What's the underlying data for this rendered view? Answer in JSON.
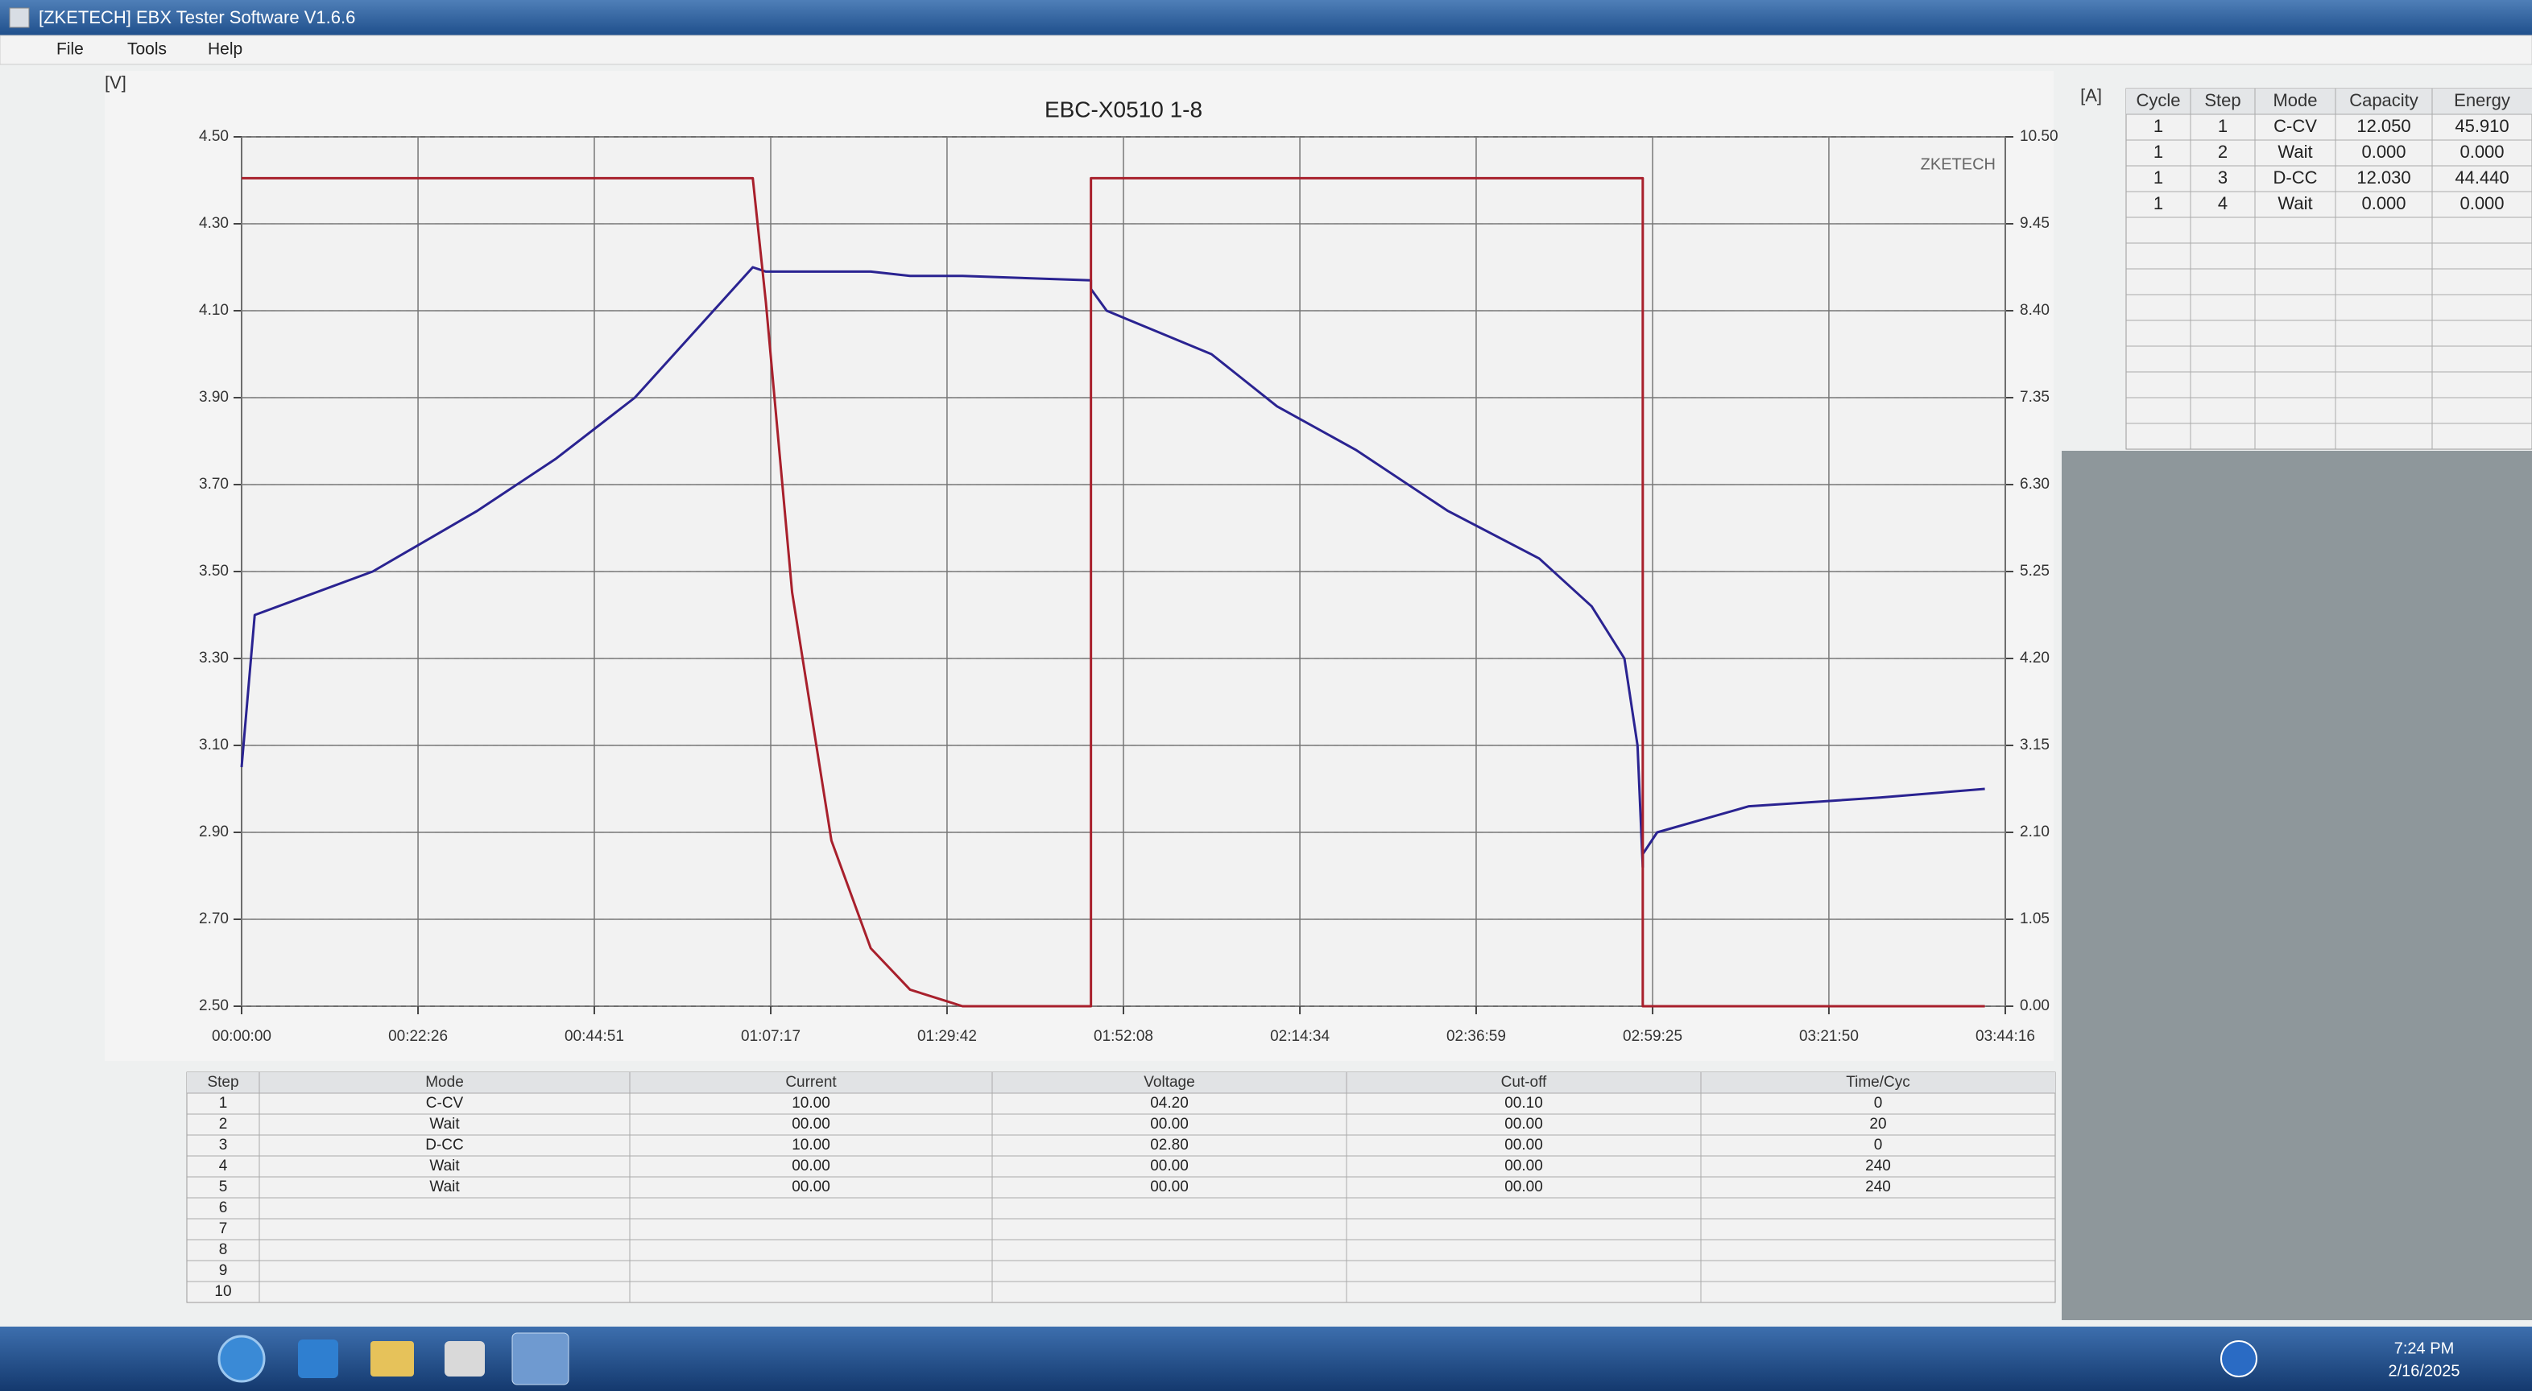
{
  "window": {
    "title": "[ZKETECH] EBX Tester Software V1.6.6",
    "menu": [
      "File",
      "Tools",
      "Help"
    ]
  },
  "chart_data": {
    "type": "line",
    "title": "EBC-X0510 1-8",
    "y_label": "[V]",
    "y2_label": "[A]",
    "watermark": "ZKETECH",
    "xlim": [
      0,
      13456
    ],
    "xticks": [
      {
        "value": 0,
        "label": "00:00:00"
      },
      {
        "value": 1346,
        "label": "00:22:26"
      },
      {
        "value": 2691,
        "label": "00:44:51"
      },
      {
        "value": 4037,
        "label": "01:07:17"
      },
      {
        "value": 5382,
        "label": "01:29:42"
      },
      {
        "value": 6728,
        "label": "01:52:08"
      },
      {
        "value": 8074,
        "label": "02:14:34"
      },
      {
        "value": 9419,
        "label": "02:36:59"
      },
      {
        "value": 10765,
        "label": "02:59:25"
      },
      {
        "value": 12110,
        "label": "03:21:50"
      },
      {
        "value": 13456,
        "label": "03:44:16"
      }
    ],
    "ylim": [
      2.5,
      4.5
    ],
    "yticks": [
      {
        "value": 2.5,
        "label": "2.50"
      },
      {
        "value": 2.7,
        "label": "2.70"
      },
      {
        "value": 2.9,
        "label": "2.90"
      },
      {
        "value": 3.1,
        "label": "3.10"
      },
      {
        "value": 3.3,
        "label": "3.30"
      },
      {
        "value": 3.5,
        "label": "3.50"
      },
      {
        "value": 3.7,
        "label": "3.70"
      },
      {
        "value": 3.9,
        "label": "3.90"
      },
      {
        "value": 4.1,
        "label": "4.10"
      },
      {
        "value": 4.3,
        "label": "4.30"
      },
      {
        "value": 4.5,
        "label": "4.50"
      }
    ],
    "y2lim": [
      0,
      10.5
    ],
    "y2ticks": [
      {
        "value": 0,
        "label": "0.00"
      },
      {
        "value": 1.05,
        "label": "1.05"
      },
      {
        "value": 2.1,
        "label": "2.10"
      },
      {
        "value": 3.15,
        "label": "3.15"
      },
      {
        "value": 4.2,
        "label": "4.20"
      },
      {
        "value": 5.25,
        "label": "5.25"
      },
      {
        "value": 6.3,
        "label": "6.30"
      },
      {
        "value": 7.35,
        "label": "7.35"
      },
      {
        "value": 8.4,
        "label": "8.40"
      },
      {
        "value": 9.45,
        "label": "9.45"
      },
      {
        "value": 10.5,
        "label": "10.50"
      }
    ],
    "grid": true,
    "x": [
      0,
      100,
      1000,
      1800,
      2400,
      3000,
      3300,
      3600,
      3900,
      4000,
      4200,
      4500,
      4800,
      5100,
      5400,
      5500,
      6480,
      6480,
      6600,
      7000,
      7400,
      7900,
      8500,
      9200,
      9900,
      10300,
      10550,
      10650,
      10690,
      10690,
      10800,
      11500,
      12500,
      13300
    ],
    "series": [
      {
        "name": "Voltage",
        "color": "#2a2391",
        "values": [
          3.05,
          3.4,
          3.5,
          3.64,
          3.76,
          3.9,
          4.0,
          4.1,
          4.2,
          4.19,
          4.19,
          4.19,
          4.19,
          4.18,
          4.18,
          4.18,
          4.17,
          4.15,
          4.1,
          4.05,
          4.0,
          3.88,
          3.78,
          3.64,
          3.53,
          3.42,
          3.3,
          3.1,
          2.82,
          2.85,
          2.9,
          2.96,
          2.98,
          3.0
        ]
      },
      {
        "name": "Current",
        "color": "#a8202c",
        "axis": "y2",
        "values": [
          10.0,
          10.0,
          10.0,
          10.0,
          10.0,
          10.0,
          10.0,
          10.0,
          10.0,
          8.5,
          5.0,
          2.0,
          0.7,
          0.2,
          0.05,
          0,
          0,
          10.0,
          10.0,
          10.0,
          10.0,
          10.0,
          10.0,
          10.0,
          10.0,
          10.0,
          10.0,
          10.0,
          10.0,
          0,
          0,
          0,
          0,
          0
        ]
      }
    ]
  },
  "cycle_table": {
    "columns": [
      "Cycle",
      "Step",
      "Mode",
      "Capacity",
      "Energy"
    ],
    "rows": [
      [
        "1",
        "1",
        "C-CV",
        "12.050",
        "45.910"
      ],
      [
        "1",
        "2",
        "Wait",
        "0.000",
        "0.000"
      ],
      [
        "1",
        "3",
        "D-CC",
        "12.030",
        "44.440"
      ],
      [
        "1",
        "4",
        "Wait",
        "0.000",
        "0.000"
      ]
    ]
  },
  "step_table": {
    "columns": [
      "Step",
      "Mode",
      "Current",
      "Voltage",
      "Cut-off",
      "Time/Cyc"
    ],
    "rows": [
      [
        "1",
        "C-CV",
        "10.00",
        "04.20",
        "00.10",
        "0"
      ],
      [
        "2",
        "Wait",
        "00.00",
        "00.00",
        "00.00",
        "20"
      ],
      [
        "3",
        "D-CC",
        "10.00",
        "02.80",
        "00.00",
        "0"
      ],
      [
        "4",
        "Wait",
        "00.00",
        "00.00",
        "00.00",
        "240"
      ],
      [
        "5",
        "Wait",
        "00.00",
        "00.00",
        "00.00",
        "240"
      ],
      [
        "6"
      ],
      [
        "7"
      ],
      [
        "8"
      ],
      [
        "9"
      ],
      [
        "10"
      ]
    ]
  },
  "taskbar": {
    "time": "7:24 PM",
    "date": "2/16/2025"
  }
}
